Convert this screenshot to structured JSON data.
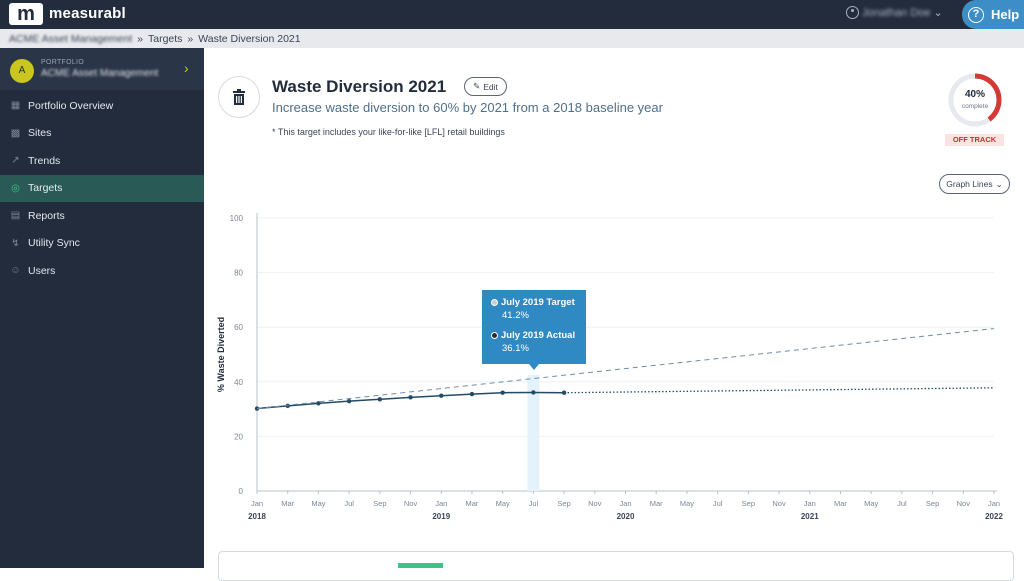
{
  "app": {
    "logo_mark": "m",
    "name": "measurabl",
    "user_name": "Jonathan Doe",
    "help_label": "Help"
  },
  "breadcrumb": {
    "items": [
      "ACME Asset Management",
      "Targets",
      "Waste Diversion 2021"
    ],
    "separator": "»"
  },
  "sidebar": {
    "portfolio_label": "PORTFOLIO",
    "portfolio_name": "ACME Asset Management",
    "avatar_letter": "A",
    "items": [
      {
        "label": "Portfolio Overview",
        "icon": "dashboard-icon"
      },
      {
        "label": "Sites",
        "icon": "building-icon"
      },
      {
        "label": "Trends",
        "icon": "trend-chart-icon"
      },
      {
        "label": "Targets",
        "icon": "target-icon",
        "active": true
      },
      {
        "label": "Reports",
        "icon": "report-icon"
      },
      {
        "label": "Utility Sync",
        "icon": "plug-icon"
      },
      {
        "label": "Users",
        "icon": "users-icon"
      }
    ]
  },
  "target": {
    "title": "Waste Diversion 2021",
    "edit_label": "Edit",
    "subtitle": "Increase waste diversion to 60% by 2021 from a 2018 baseline year",
    "note": "* This target includes your like-for-like [LFL] retail buildings",
    "progress_pct": "40%",
    "progress_value": 0.4,
    "progress_label": "complete",
    "status": "OFF TRACK",
    "graph_lines_label": "Graph Lines"
  },
  "colors": {
    "sidebar_bg": "#222c3c",
    "active_nav": "#2a5a56",
    "accent_blue": "#2f89c2",
    "off_track_red": "#d23a33",
    "actual_line": "#234b66",
    "target_line": "#6d8ea8"
  },
  "tooltip": {
    "target_label": "July 2019 Target",
    "target_value": "41.2%",
    "actual_label": "July 2019 Actual",
    "actual_value": "36.1%"
  },
  "chart_data": {
    "type": "line",
    "ylabel": "% Waste Diverted",
    "ylim": [
      0,
      100
    ],
    "yticks": [
      0,
      20,
      40,
      60,
      80,
      100
    ],
    "x_month_labels": [
      "Jan",
      "Mar",
      "May",
      "Jul",
      "Sep",
      "Nov",
      "Jan",
      "Mar",
      "May",
      "Jul",
      "Sep",
      "Nov",
      "Jan",
      "Mar",
      "May",
      "Jul",
      "Sep",
      "Nov",
      "Jan",
      "Mar",
      "May",
      "Jul",
      "Sep",
      "Nov",
      "Jan"
    ],
    "x_year_labels": [
      "2018",
      "2019",
      "2020",
      "2021",
      "2022"
    ],
    "x_start": "2018-01",
    "x_end": "2022-01",
    "series": [
      {
        "name": "Actual",
        "style": "solid-with-markers",
        "x": [
          "2018-01",
          "2018-03",
          "2018-05",
          "2018-07",
          "2018-09",
          "2018-11",
          "2019-01",
          "2019-03",
          "2019-05",
          "2019-07",
          "2019-09"
        ],
        "values": [
          30.2,
          31.2,
          32.1,
          32.9,
          33.6,
          34.3,
          34.9,
          35.5,
          36.0,
          36.1,
          36.0
        ]
      },
      {
        "name": "Actual projection",
        "style": "dotted",
        "x": [
          "2019-09",
          "2022-01"
        ],
        "values": [
          36.0,
          37.8
        ]
      },
      {
        "name": "Target",
        "style": "dashed",
        "x": [
          "2018-01",
          "2022-01"
        ],
        "values": [
          30.2,
          59.5
        ]
      }
    ],
    "highlight": {
      "x": "2019-07",
      "target": 41.2,
      "actual": 36.1
    }
  }
}
